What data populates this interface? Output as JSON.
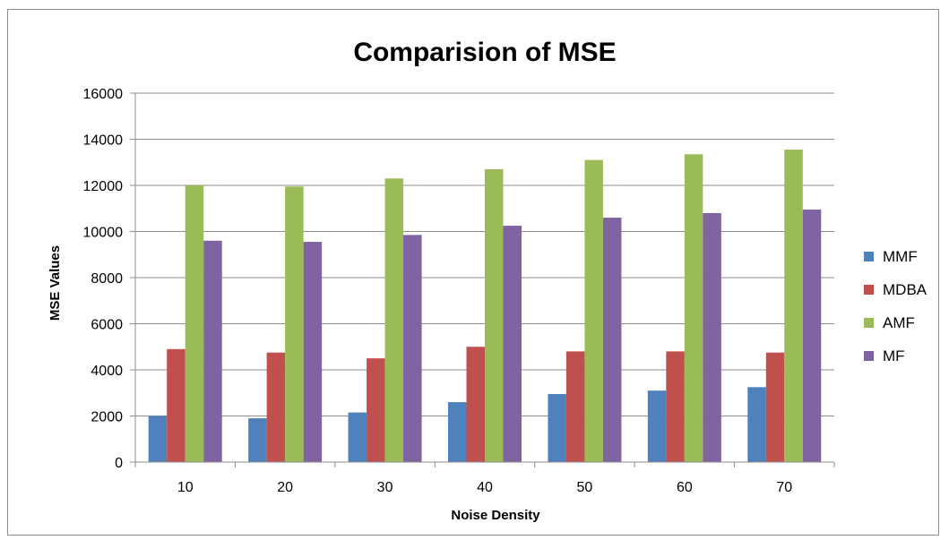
{
  "chart_data": {
    "type": "bar",
    "title": "Comparision of MSE",
    "xlabel": "Noise Density",
    "ylabel": "MSE Values",
    "categories": [
      "10",
      "20",
      "30",
      "40",
      "50",
      "60",
      "70"
    ],
    "ylim": [
      0,
      16000
    ],
    "yticks": [
      0,
      2000,
      4000,
      6000,
      8000,
      10000,
      12000,
      14000,
      16000
    ],
    "grid": true,
    "legend_position": "right",
    "series": [
      {
        "name": "MMF",
        "color": "#4f81bd",
        "values": [
          2000,
          1900,
          2150,
          2600,
          2950,
          3100,
          3250
        ]
      },
      {
        "name": "MDBA",
        "color": "#c0504d",
        "values": [
          4900,
          4750,
          4500,
          5000,
          4800,
          4800,
          4750
        ]
      },
      {
        "name": "AMF",
        "color": "#9bbb59",
        "values": [
          12000,
          11950,
          12300,
          12700,
          13100,
          13350,
          13550
        ]
      },
      {
        "name": "MF",
        "color": "#8064a2",
        "values": [
          9600,
          9550,
          9850,
          10250,
          10600,
          10800,
          10950
        ]
      }
    ]
  }
}
